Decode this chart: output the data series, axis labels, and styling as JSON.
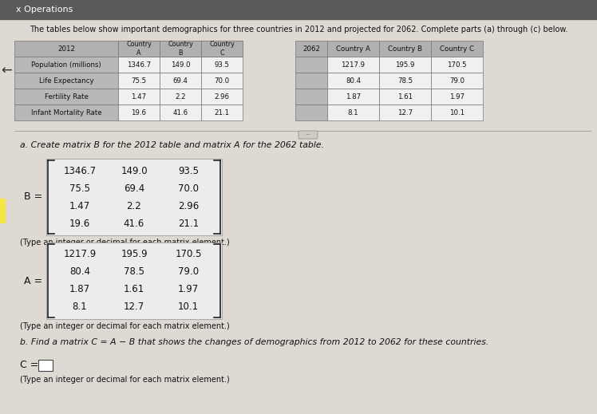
{
  "title": "The tables below show important demographics for three countries in 2012 and projected for 2062. Complete parts (a) through (c) below.",
  "row_labels": [
    "Population (millions)",
    "Life Expectancy",
    "Fertility Rate",
    "Infant Mortality Rate"
  ],
  "table_2012_data": [
    [
      1346.7,
      149.0,
      93.5
    ],
    [
      75.5,
      69.4,
      70.0
    ],
    [
      1.47,
      2.2,
      2.96
    ],
    [
      19.6,
      41.6,
      21.1
    ]
  ],
  "table_2062_data": [
    [
      1217.9,
      195.9,
      170.5
    ],
    [
      80.4,
      78.5,
      79.0
    ],
    [
      1.87,
      1.61,
      1.97
    ],
    [
      8.1,
      12.7,
      10.1
    ]
  ],
  "matrix_B": [
    [
      "1346.7",
      "149.0",
      "93.5"
    ],
    [
      "75.5",
      "69.4",
      "70.0"
    ],
    [
      "1.47",
      "2.2",
      "2.96"
    ],
    [
      "19.6",
      "41.6",
      "21.1"
    ]
  ],
  "matrix_A": [
    [
      "1217.9",
      "195.9",
      "170.5"
    ],
    [
      "80.4",
      "78.5",
      "79.0"
    ],
    [
      "1.87",
      "1.61",
      "1.97"
    ],
    [
      "8.1",
      "12.7",
      "10.1"
    ]
  ],
  "part_a_text": "a. Create matrix B for the 2012 table and matrix A for the 2062 table.",
  "part_b_text": "b. Find a matrix C = A − B that shows the changes of demographics from 2012 to 2062 for these countries.",
  "type_note": "(Type an integer or decimal for each matrix element.)",
  "c_label": "C =",
  "c_note": "(Type an integer or decimal for each matrix element.)",
  "header_bg": "#2d2d2d",
  "header_text": "#ffffff",
  "row_label_bg": "#c8c8c8",
  "data_bg": "#ffffff",
  "border_color": "#888888",
  "page_bg": "#d8d4cc",
  "content_bg": "#e8e4dc",
  "matrix_bg": "#e8e5de",
  "text_color": "#111111",
  "top_bar_color": "#5a5a5a"
}
